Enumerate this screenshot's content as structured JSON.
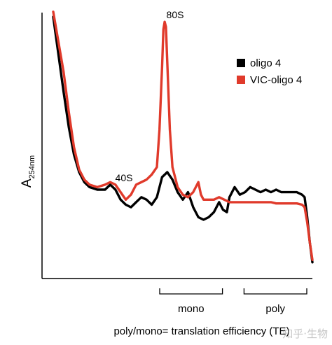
{
  "chart_data": {
    "type": "line",
    "ylabel_main": "A",
    "ylabel_sub": "254nm",
    "xlabel": "poly/mono= translation efficiency (TE)",
    "x_ticks": "none",
    "y_ticks": "none",
    "grid": false,
    "legend_position": "top-right",
    "peak_labels": [
      {
        "text": "40S",
        "x": 0.22
      },
      {
        "text": "80S",
        "x": 0.43
      }
    ],
    "brackets": [
      {
        "label": "mono",
        "x_start": 0.25,
        "x_end": 0.57
      },
      {
        "label": "poly",
        "x_start": 0.68,
        "x_end": 1.0
      }
    ],
    "series": [
      {
        "name": "oligo 4",
        "color": "#000000",
        "points": [
          [
            0.0,
            1.0
          ],
          [
            0.02,
            0.85
          ],
          [
            0.04,
            0.7
          ],
          [
            0.06,
            0.56
          ],
          [
            0.08,
            0.45
          ],
          [
            0.1,
            0.38
          ],
          [
            0.12,
            0.34
          ],
          [
            0.14,
            0.32
          ],
          [
            0.17,
            0.31
          ],
          [
            0.2,
            0.31
          ],
          [
            0.22,
            0.33
          ],
          [
            0.24,
            0.31
          ],
          [
            0.26,
            0.27
          ],
          [
            0.28,
            0.25
          ],
          [
            0.3,
            0.24
          ],
          [
            0.32,
            0.26
          ],
          [
            0.34,
            0.28
          ],
          [
            0.36,
            0.27
          ],
          [
            0.38,
            0.25
          ],
          [
            0.4,
            0.28
          ],
          [
            0.42,
            0.36
          ],
          [
            0.44,
            0.38
          ],
          [
            0.46,
            0.35
          ],
          [
            0.48,
            0.3
          ],
          [
            0.5,
            0.27
          ],
          [
            0.52,
            0.3
          ],
          [
            0.54,
            0.24
          ],
          [
            0.56,
            0.2
          ],
          [
            0.58,
            0.19
          ],
          [
            0.6,
            0.2
          ],
          [
            0.62,
            0.22
          ],
          [
            0.64,
            0.26
          ],
          [
            0.655,
            0.23
          ],
          [
            0.67,
            0.22
          ],
          [
            0.68,
            0.28
          ],
          [
            0.7,
            0.32
          ],
          [
            0.72,
            0.29
          ],
          [
            0.74,
            0.3
          ],
          [
            0.76,
            0.32
          ],
          [
            0.78,
            0.31
          ],
          [
            0.8,
            0.3
          ],
          [
            0.82,
            0.31
          ],
          [
            0.84,
            0.3
          ],
          [
            0.86,
            0.31
          ],
          [
            0.88,
            0.3
          ],
          [
            0.9,
            0.3
          ],
          [
            0.92,
            0.3
          ],
          [
            0.94,
            0.3
          ],
          [
            0.96,
            0.29
          ],
          [
            0.97,
            0.28
          ],
          [
            0.98,
            0.2
          ],
          [
            0.99,
            0.1
          ],
          [
            1.0,
            0.02
          ]
        ]
      },
      {
        "name": "VIC-oligo 4",
        "color": "#e03a2b",
        "points": [
          [
            0.0,
            1.02
          ],
          [
            0.02,
            0.9
          ],
          [
            0.04,
            0.78
          ],
          [
            0.06,
            0.62
          ],
          [
            0.08,
            0.48
          ],
          [
            0.1,
            0.39
          ],
          [
            0.12,
            0.35
          ],
          [
            0.14,
            0.33
          ],
          [
            0.17,
            0.32
          ],
          [
            0.2,
            0.33
          ],
          [
            0.22,
            0.34
          ],
          [
            0.24,
            0.33
          ],
          [
            0.26,
            0.3
          ],
          [
            0.28,
            0.27
          ],
          [
            0.3,
            0.29
          ],
          [
            0.32,
            0.33
          ],
          [
            0.34,
            0.34
          ],
          [
            0.36,
            0.35
          ],
          [
            0.38,
            0.37
          ],
          [
            0.4,
            0.4
          ],
          [
            0.41,
            0.55
          ],
          [
            0.42,
            0.8
          ],
          [
            0.425,
            0.95
          ],
          [
            0.43,
            0.98
          ],
          [
            0.435,
            0.96
          ],
          [
            0.44,
            0.82
          ],
          [
            0.45,
            0.55
          ],
          [
            0.46,
            0.4
          ],
          [
            0.48,
            0.32
          ],
          [
            0.5,
            0.29
          ],
          [
            0.52,
            0.28
          ],
          [
            0.54,
            0.3
          ],
          [
            0.56,
            0.34
          ],
          [
            0.57,
            0.29
          ],
          [
            0.58,
            0.27
          ],
          [
            0.6,
            0.27
          ],
          [
            0.62,
            0.27
          ],
          [
            0.64,
            0.28
          ],
          [
            0.66,
            0.27
          ],
          [
            0.68,
            0.26
          ],
          [
            0.7,
            0.26
          ],
          [
            0.72,
            0.26
          ],
          [
            0.74,
            0.26
          ],
          [
            0.76,
            0.26
          ],
          [
            0.78,
            0.26
          ],
          [
            0.8,
            0.26
          ],
          [
            0.82,
            0.26
          ],
          [
            0.84,
            0.26
          ],
          [
            0.86,
            0.255
          ],
          [
            0.88,
            0.255
          ],
          [
            0.9,
            0.255
          ],
          [
            0.92,
            0.255
          ],
          [
            0.94,
            0.255
          ],
          [
            0.96,
            0.25
          ],
          [
            0.97,
            0.24
          ],
          [
            0.98,
            0.18
          ],
          [
            0.99,
            0.1
          ],
          [
            1.0,
            0.03
          ]
        ]
      }
    ]
  },
  "watermark": "知乎·生物"
}
